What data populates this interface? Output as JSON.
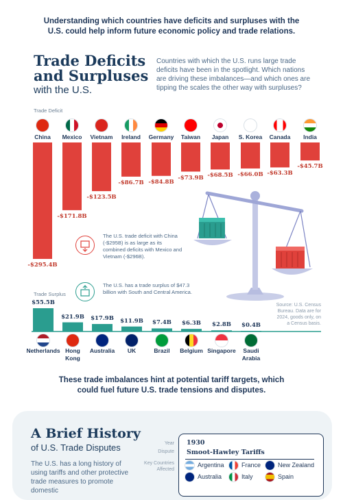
{
  "intro": "Understanding which countries have deficits and surpluses with the U.S. could help inform future economic policy and trade relations.",
  "title": {
    "line1": "Trade Deficits",
    "line2": "and Surpluses",
    "line3": "with the U.S."
  },
  "description": "Countries with which the U.S. runs large trade deficits have been in the spotlight. Which nations are driving these imbalances—and which ones are tipping the scales the other way with surpluses?",
  "labels": {
    "deficit": "Trade Deficit",
    "surplus": "Trade Surplus"
  },
  "notes": {
    "china": "The U.S. trade deficit with China (-$295B) is as large as its combined deficits with Mexico and Vietnam (-$296B).",
    "south_america": "The U.S. has a trade surplus of $47.3 billion with South and Central America.",
    "source": "Source: U.S. Census Bureau. Data are for 2024, goods only, on a Census basis."
  },
  "chart_data": {
    "type": "bar",
    "deficits": {
      "categories": [
        "China",
        "Mexico",
        "Vietnam",
        "Ireland",
        "Germany",
        "Taiwan",
        "Japan",
        "S. Korea",
        "Canada",
        "India"
      ],
      "values": [
        -295.4,
        -171.8,
        -123.5,
        -86.7,
        -84.8,
        -73.9,
        -68.5,
        -66.0,
        -63.3,
        -45.7
      ],
      "labels": [
        "-$295.4B",
        "-$171.8B",
        "-$123.5B",
        "-$86.7B",
        "-$84.8B",
        "-$73.9B",
        "-$68.5B",
        "-$66.0B",
        "-$63.3B",
        "-$45.7B"
      ],
      "color": "#e0413b"
    },
    "surpluses": {
      "categories": [
        "Netherlands",
        "Hong Kong",
        "Australia",
        "UK",
        "Brazil",
        "Belgium",
        "Singapore",
        "Saudi Arabia"
      ],
      "values": [
        55.5,
        21.9,
        17.9,
        11.9,
        7.4,
        6.3,
        2.8,
        0.4
      ],
      "labels": [
        "$55.5B",
        "$21.9B",
        "$17.9B",
        "$11.9B",
        "$7.4B",
        "$6.3B",
        "$2.8B",
        "$0.4B"
      ],
      "color": "#2a9d8f"
    }
  },
  "outro": "These trade imbalances hint at potential tariff targets, which could fuel future U.S. trade tensions and disputes.",
  "history": {
    "title": "A Brief History",
    "subtitle": "of U.S. Trade Disputes",
    "text": "The U.S. has a long history of using tariffs and other protective trade measures to promote domestic",
    "meta_year": "Year",
    "meta_dispute": "Dispute",
    "meta_affected": "Key Countries Affected",
    "year": "1930",
    "dispute": "Smoot-Hawley Tariffs",
    "affected": [
      "Argentina",
      "France",
      "New Zealand",
      "Australia",
      "Italy",
      "Spain"
    ]
  }
}
